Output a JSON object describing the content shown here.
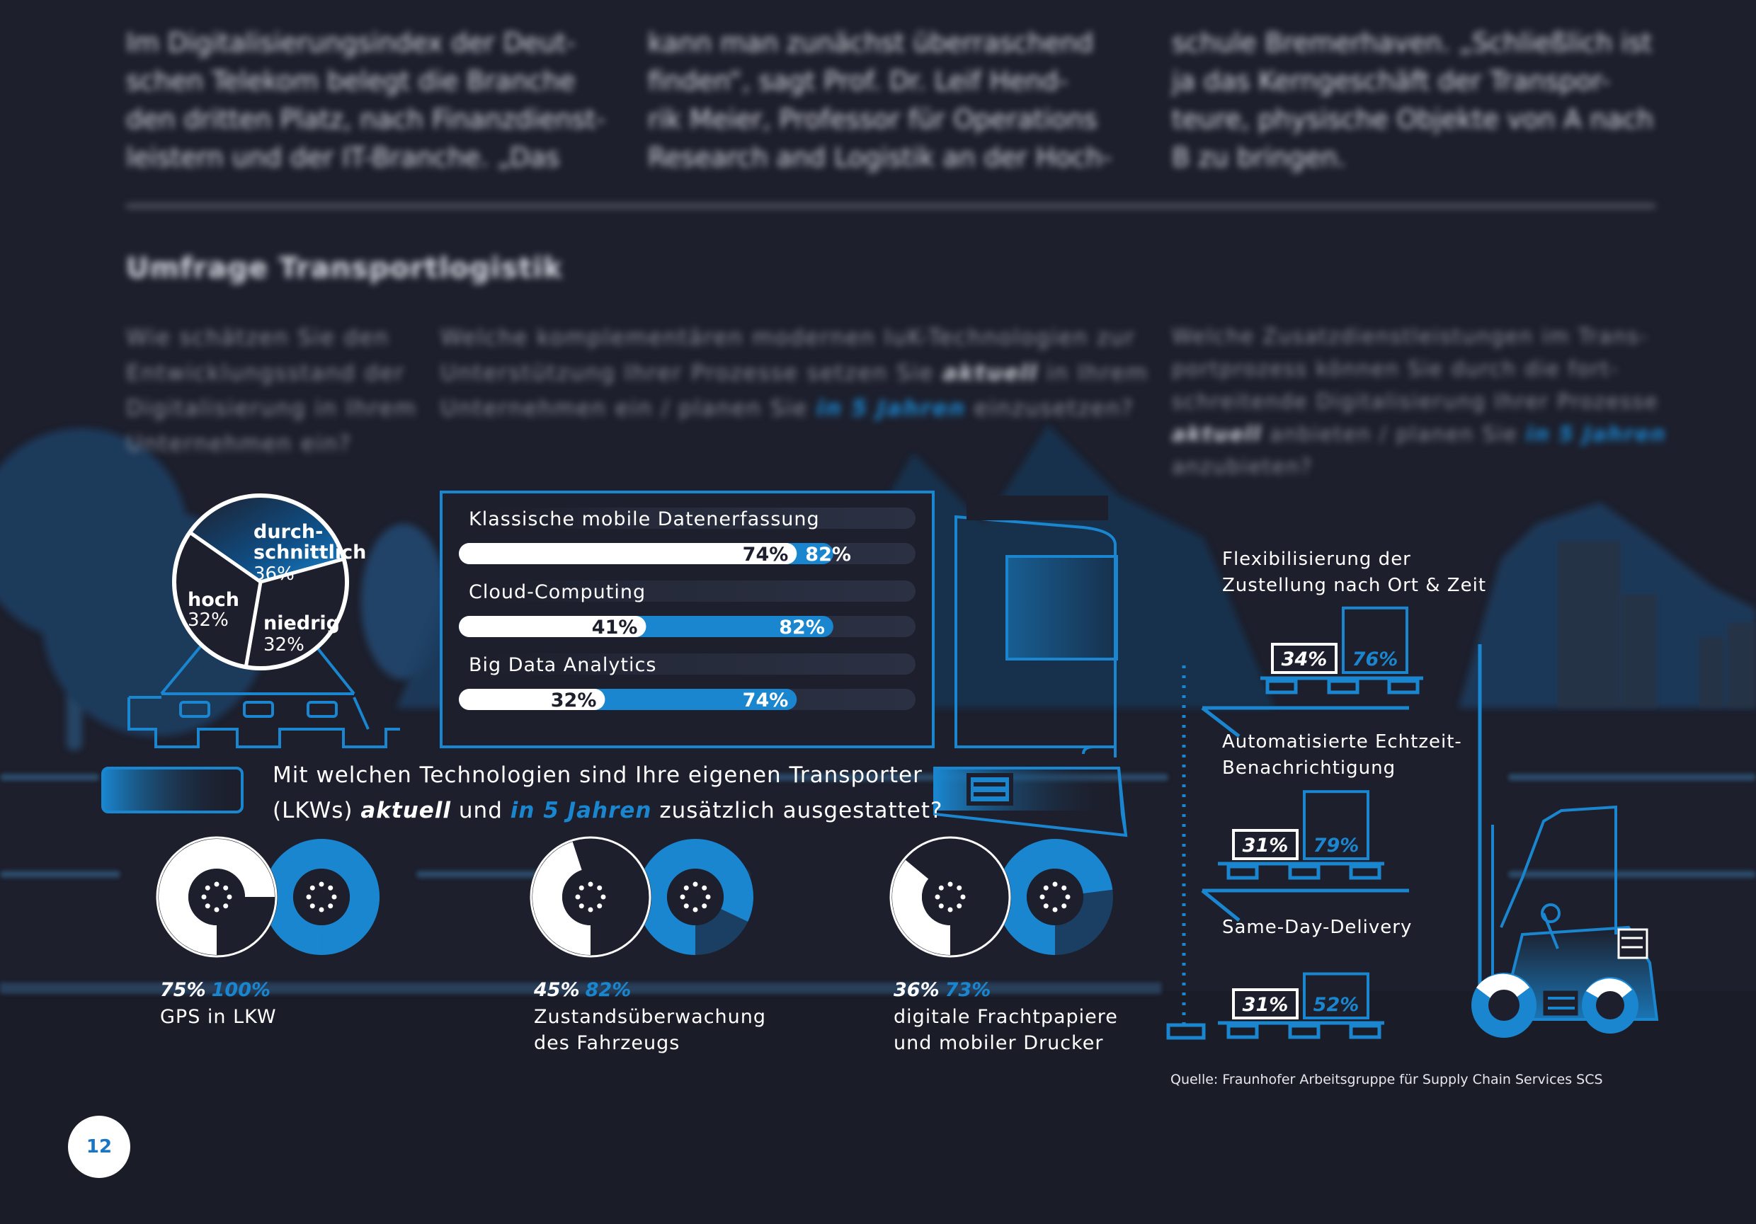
{
  "article": {
    "columns": [
      [
        "Im Digitalisierungsindex der Deut-",
        "schen Telekom belegt die Branche",
        "den dritten Platz, nach Finanzdienst-",
        "leistern und der IT-Branche. „Das"
      ],
      [
        "kann man zunächst überraschend",
        "finden“, sagt Prof. Dr. Leif Hend-",
        "rik Meier, Professor für Operations",
        "Research and Logistik an der Hoch-"
      ],
      [
        "schule Bremerhaven. „Schließlich ist",
        "ja das Kerngeschäft der Transpor-",
        "teure, physische Objekte von A nach",
        "B zu bringen."
      ]
    ],
    "section_title": "Umfrage Transportlogistik"
  },
  "questions": {
    "q1": [
      "Wie schätzen Sie den",
      "Entwicklungsstand der",
      "Digitalisierung in Ihrem",
      "Unternehmen ein?"
    ],
    "q2_line1": "Welche komplementären modernen IuK-Technologien zur",
    "q2_line2_a": "Unterstützung Ihrer Prozesse setzen Sie ",
    "q2_line2_b": "aktuell",
    "q2_line2_c": " in Ihrem",
    "q2_line3_a": "Unternehmen ein / planen Sie ",
    "q2_line3_b": "in 5 Jahren",
    "q2_line3_c": " einzusetzen?",
    "q3_line1": "Welche Zusatzdienstleistungen im Trans-",
    "q3_line2": "portprozess können Sie durch die fort-",
    "q3_line3": "schreitende Digitalisierung Ihrer Prozesse",
    "q3_line4_a": "aktuell",
    "q3_line4_b": " anbieten / planen Sie ",
    "q3_line4_c": "in 5 Jahren",
    "q3_line5": "anzubieten?",
    "q4_line1": "Mit welchen Technologien sind Ihre eigenen Transporter",
    "q4_line2_a": "(LKWs) ",
    "q4_line2_b": "aktuell",
    "q4_line2_c": " und ",
    "q4_line2_d": "in 5 Jahren",
    "q4_line2_e": " zusätzlich ausgestattet?"
  },
  "colors": {
    "background": "#1d1f2c",
    "accent": "#1a86cf",
    "white": "#ffffff",
    "dark": "#1d1f2c"
  },
  "chart_data": [
    {
      "type": "pie",
      "slices": [
        {
          "label_1": "durch-",
          "label_2": "schnittlich",
          "value": 36,
          "display": "36%"
        },
        {
          "label_1": "niedrig",
          "value": 32,
          "display": "32%"
        },
        {
          "label_1": "hoch",
          "value": 32,
          "display": "32%"
        }
      ]
    },
    {
      "type": "bar",
      "categories": [
        "Klassische mobile Datenerfassung",
        "Cloud-Computing",
        "Big Data Analytics"
      ],
      "series": [
        {
          "name": "aktuell",
          "values": [
            74,
            41,
            32
          ]
        },
        {
          "name": "in 5 Jahren",
          "values": [
            82,
            82,
            74
          ]
        }
      ],
      "labels_aktuell": [
        "74%",
        "41%",
        "32%"
      ],
      "labels_5": [
        "82%",
        "82%",
        "74%"
      ],
      "ylim": [
        0,
        100
      ]
    },
    {
      "type": "donut-pairs",
      "items": [
        {
          "aktuell": 75,
          "future": 100,
          "aktuell_label": "75%",
          "future_label": "100%",
          "name_1": "GPS in LKW",
          "name_2": ""
        },
        {
          "aktuell": 45,
          "future": 82,
          "aktuell_label": "45%",
          "future_label": "82%",
          "name_1": "Zustandsüberwachung",
          "name_2": "des Fahrzeugs"
        },
        {
          "aktuell": 36,
          "future": 73,
          "aktuell_label": "36%",
          "future_label": "73%",
          "name_1": "digitale Frachtpapiere",
          "name_2": "und mobiler Drucker"
        }
      ]
    },
    {
      "type": "boxes",
      "items": [
        {
          "name_1": "Flexibilisierung der",
          "name_2": "Zustellung nach Ort & Zeit",
          "aktuell": 34,
          "future": 76,
          "aktuell_label": "34%",
          "future_label": "76%"
        },
        {
          "name_1": "Automatisierte Echtzeit-",
          "name_2": "Benachrichtigung",
          "aktuell": 31,
          "future": 79,
          "aktuell_label": "31%",
          "future_label": "79%"
        },
        {
          "name_1": "Same-Day-Delivery",
          "name_2": "",
          "aktuell": 31,
          "future": 52,
          "aktuell_label": "31%",
          "future_label": "52%"
        }
      ]
    }
  ],
  "source": "Quelle: Fraunhofer Arbeitsgruppe für Supply Chain Services SCS",
  "page_number": "12"
}
